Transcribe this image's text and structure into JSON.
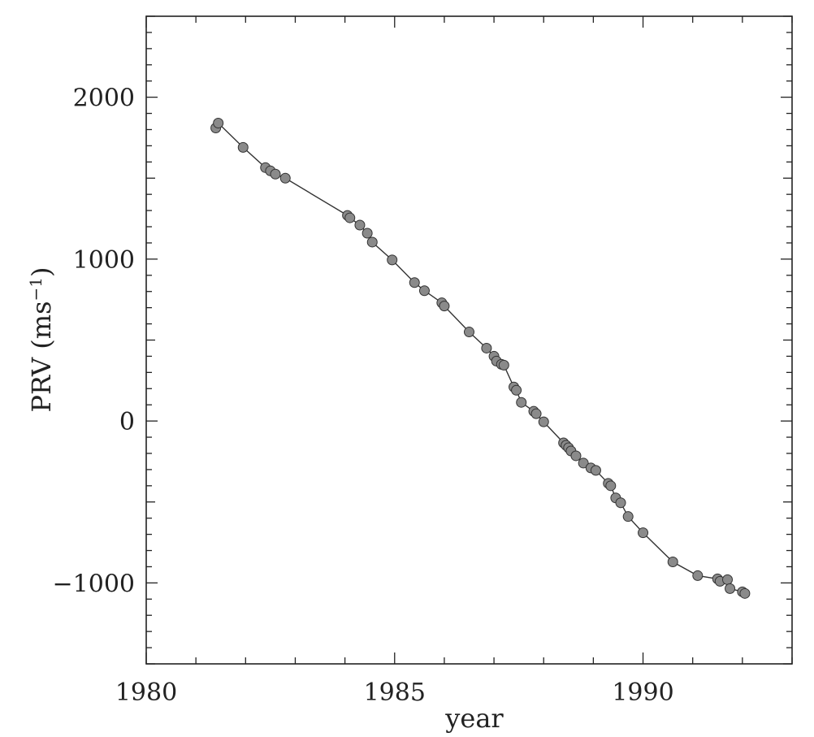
{
  "chart_data": {
    "type": "scatter",
    "title": "",
    "xlabel": "year",
    "ylabel_main": "PRV (ms",
    "ylabel_exp": "−1",
    "ylabel_close": ")",
    "xlim": [
      1980,
      1993
    ],
    "ylim": [
      -1500,
      2500
    ],
    "x_ticks": [
      1980,
      1985,
      1990
    ],
    "x_tick_labels": [
      "1980",
      "1985",
      "1990"
    ],
    "y_ticks": [
      -1000,
      0,
      1000,
      2000
    ],
    "y_tick_labels": [
      "−1000",
      "0",
      "1000",
      "2000"
    ],
    "grid": false,
    "fit_line": true,
    "point_color": "#8a8a8a",
    "line_color": "#333333",
    "series": [
      {
        "x": [
          1981.4,
          1981.45,
          1981.95,
          1982.4,
          1982.5,
          1982.6,
          1982.8,
          1984.05,
          1984.1,
          1984.3,
          1984.45,
          1984.55,
          1984.95,
          1985.4,
          1985.6,
          1985.95,
          1986.0,
          1986.5,
          1986.85,
          1987.0,
          1987.05,
          1987.15,
          1987.2,
          1987.4,
          1987.45,
          1987.55,
          1987.8,
          1987.85,
          1988.0,
          1988.4,
          1988.45,
          1988.5,
          1988.55,
          1988.65,
          1988.8,
          1988.95,
          1989.05,
          1989.3,
          1989.35,
          1989.45,
          1989.55,
          1989.7,
          1990.0,
          1990.6,
          1991.1,
          1991.5,
          1991.55,
          1991.7,
          1991.75,
          1992.0,
          1992.05
        ],
        "y": [
          1810,
          1840,
          1690,
          1565,
          1545,
          1525,
          1500,
          1270,
          1255,
          1210,
          1160,
          1105,
          995,
          855,
          805,
          730,
          710,
          550,
          450,
          400,
          370,
          350,
          345,
          210,
          190,
          115,
          60,
          45,
          -5,
          -135,
          -150,
          -165,
          -185,
          -215,
          -260,
          -290,
          -305,
          -385,
          -400,
          -475,
          -505,
          -590,
          -690,
          -870,
          -955,
          -975,
          -990,
          -980,
          -1035,
          -1055,
          -1065
        ]
      }
    ]
  }
}
